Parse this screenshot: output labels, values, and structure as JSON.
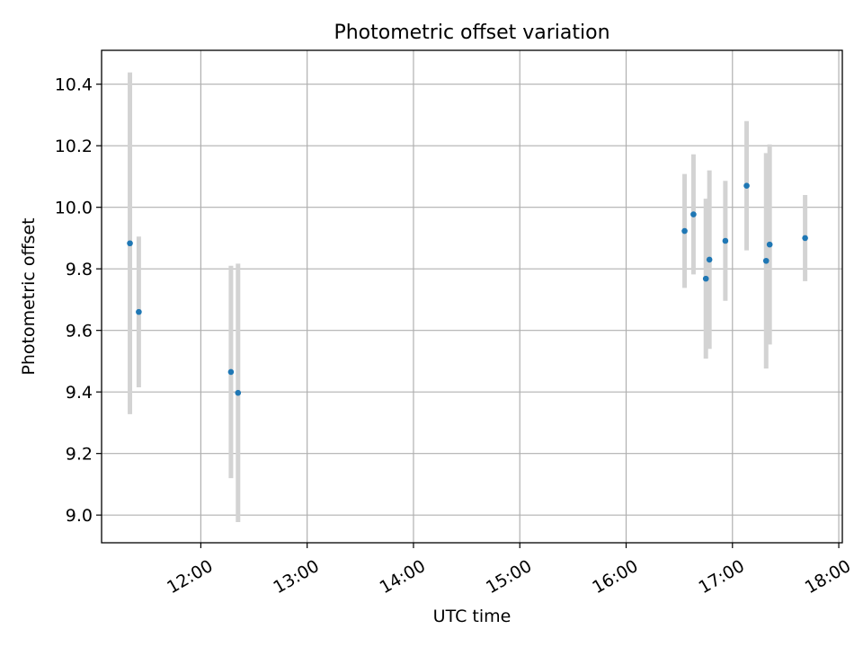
{
  "chart_data": {
    "type": "scatter",
    "title": "Photometric offset variation",
    "xlabel": "UTC time",
    "ylabel": "Photometric offset",
    "x_ticks": [
      "12:00",
      "13:00",
      "14:00",
      "15:00",
      "16:00",
      "17:00",
      "18:00"
    ],
    "y_ticks": [
      "9.0",
      "9.2",
      "9.4",
      "9.6",
      "9.8",
      "10.0",
      "10.2",
      "10.4"
    ],
    "xlim": [
      "11:04",
      "18:02"
    ],
    "ylim": [
      8.91,
      10.51
    ],
    "grid": true,
    "colors": {
      "point": "#1f77b4",
      "errorbar": "#d3d3d3",
      "grid": "#b0b0b0"
    },
    "points": [
      {
        "x": "11:20",
        "y": 9.883,
        "yerr": 0.555
      },
      {
        "x": "11:25",
        "y": 9.66,
        "yerr": 0.245
      },
      {
        "x": "12:17",
        "y": 9.465,
        "yerr": 0.345
      },
      {
        "x": "12:21",
        "y": 9.397,
        "yerr": 0.42
      },
      {
        "x": "16:33",
        "y": 9.923,
        "yerr": 0.185
      },
      {
        "x": "16:38",
        "y": 9.977,
        "yerr": 0.195
      },
      {
        "x": "16:45",
        "y": 9.768,
        "yerr": 0.26
      },
      {
        "x": "16:47",
        "y": 9.83,
        "yerr": 0.29
      },
      {
        "x": "16:56",
        "y": 9.891,
        "yerr": 0.195
      },
      {
        "x": "17:08",
        "y": 10.07,
        "yerr": 0.21
      },
      {
        "x": "17:19",
        "y": 9.826,
        "yerr": 0.35
      },
      {
        "x": "17:21",
        "y": 9.879,
        "yerr": 0.325
      },
      {
        "x": "17:41",
        "y": 9.9,
        "yerr": 0.14
      }
    ]
  }
}
